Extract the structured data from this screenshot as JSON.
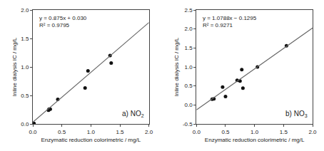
{
  "chart_data": [
    {
      "type": "scatter",
      "xlabel": "Enzymatic reduction colorimetric / mg/L",
      "ylabel": "Inline dialysis IC / mg/L",
      "annotations": [
        "y = 0.875x + 0.030",
        "R² = 0.9795",
        "a) NO",
        "2"
      ],
      "series": [
        {
          "type": "scatter",
          "color": "#111111",
          "x": [
            0.02,
            0.27,
            0.28,
            0.3,
            0.43,
            0.9,
            0.95,
            1.33,
            1.35
          ],
          "values": [
            0.01,
            0.24,
            0.26,
            0.26,
            0.43,
            0.63,
            0.93,
            1.2,
            1.07
          ]
        },
        {
          "type": "line",
          "color": "#666666",
          "x": [
            0.0,
            2.0
          ],
          "values": [
            0.03,
            1.78
          ]
        }
      ],
      "xlim": [
        0.0,
        2.0
      ],
      "ylim": [
        0.0,
        2.0
      ],
      "xticks": [
        {
          "value": 0,
          "label": "0.0"
        },
        0.5,
        {
          "value": 1,
          "label": "1.0"
        },
        1.5,
        {
          "value": 2,
          "label": "2.0"
        }
      ],
      "yticks": [
        {
          "value": 0,
          "label": "0.0"
        },
        0.5,
        {
          "value": 1,
          "label": "1.0"
        },
        1.5,
        {
          "value": 2,
          "label": "2.0"
        }
      ],
      "grid": false
    },
    {
      "type": "scatter",
      "xlabel": "Enzymatic reduction colorimetric / mg/L",
      "ylabel": "Inline dialysis IC / mg/L",
      "annotations": [
        "y = 1.0788x − 0.1295",
        "R² = 0.9271",
        "b) NO",
        "3"
      ],
      "series": [
        {
          "type": "scatter",
          "color": "#111111",
          "x": [
            0.27,
            0.3,
            0.45,
            0.5,
            0.7,
            0.75,
            0.78,
            0.8,
            1.05,
            1.55
          ],
          "values": [
            0.15,
            0.16,
            0.47,
            0.22,
            0.65,
            0.63,
            0.93,
            0.44,
            1.0,
            1.56
          ]
        },
        {
          "type": "line",
          "color": "#666666",
          "x": [
            0.0,
            2.0
          ],
          "values": [
            -0.1295,
            2.0281
          ]
        }
      ],
      "xlim": [
        0.0,
        2.0
      ],
      "ylim": [
        -0.5,
        2.5
      ],
      "xticks": [
        {
          "value": 0,
          "label": "0.0"
        },
        0.5,
        {
          "value": 1,
          "label": "1.0"
        },
        1.5,
        {
          "value": 2,
          "label": "2.0"
        }
      ],
      "yticks": [
        -0.5,
        {
          "value": 0,
          "label": "0.0"
        },
        0.5,
        {
          "value": 1,
          "label": "1.0"
        },
        1.5,
        {
          "value": 2,
          "label": "2.0"
        },
        2.5
      ],
      "grid": false
    }
  ]
}
